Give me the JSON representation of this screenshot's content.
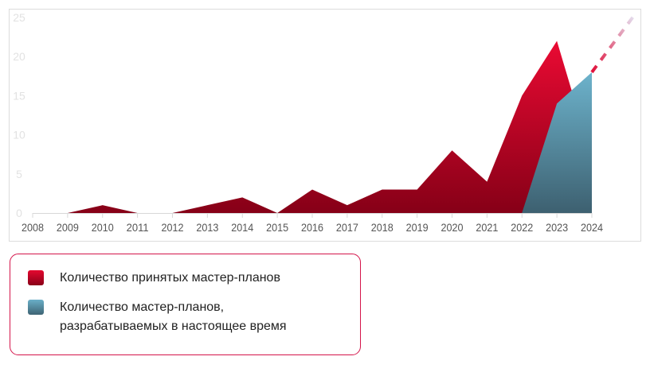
{
  "chart_data": {
    "type": "area",
    "x": [
      2008,
      2009,
      2010,
      2011,
      2012,
      2013,
      2014,
      2015,
      2016,
      2017,
      2018,
      2019,
      2020,
      2021,
      2022,
      2023,
      2024
    ],
    "x_tick_labels": [
      "2008",
      "2009",
      "2010",
      "2011",
      "2012",
      "2013",
      "2014",
      "2015",
      "2016",
      "2017",
      "2018",
      "2019",
      "2020",
      "2021",
      "2022",
      "2023",
      "2024"
    ],
    "y_tick_labels": [
      "0",
      "5",
      "10",
      "15",
      "20",
      "25"
    ],
    "ylim": [
      0,
      25
    ],
    "grid": false,
    "series": [
      {
        "name": "Количество принятых мастер-планов",
        "values": [
          0,
          0,
          1,
          0,
          0,
          1,
          2,
          0,
          3,
          1,
          3,
          3,
          8,
          4,
          15,
          22,
          7
        ],
        "color": "#d4082e"
      },
      {
        "name": "Количество мастер-планов, разрабатываемых в настоящее время",
        "x": [
          2022,
          2023,
          2024
        ],
        "values": [
          0,
          14,
          18
        ],
        "color": "#5b9bb2"
      }
    ],
    "trend": {
      "style": "dashed",
      "from": [
        2024,
        18
      ],
      "to": [
        2025.25,
        25.5
      ]
    },
    "legend_position": "bottom-left"
  },
  "legend": {
    "items": [
      {
        "label": "Количество принятых мастер-планов"
      },
      {
        "label_line1": "Количество мастер-планов,",
        "label_line2": "разрабатываемых в настоящее время"
      }
    ]
  }
}
